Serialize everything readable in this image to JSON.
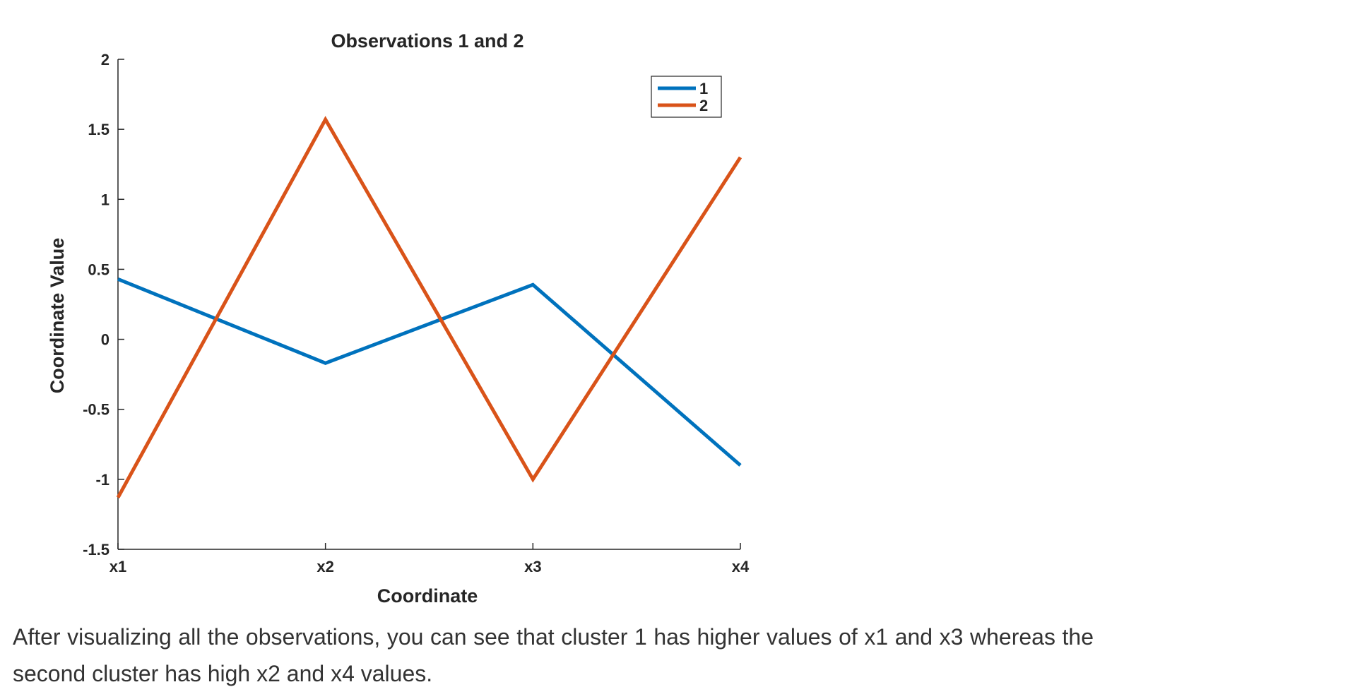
{
  "chart_data": {
    "type": "line",
    "title": "Observations 1 and 2",
    "xlabel": "Coordinate",
    "ylabel": "Coordinate Value",
    "categories": [
      "x1",
      "x2",
      "x3",
      "x4"
    ],
    "ylim": [
      -1.5,
      2
    ],
    "yticks": [
      -1.5,
      -1,
      -0.5,
      0,
      0.5,
      1,
      1.5,
      2
    ],
    "ytick_labels": [
      "-1.5",
      "-1",
      "-0.5",
      "0",
      "0.5",
      "1",
      "1.5",
      "2"
    ],
    "grid": false,
    "legend_position": "top-right",
    "series": [
      {
        "name": "1",
        "color": "#0072BD",
        "values": [
          0.43,
          -0.17,
          0.39,
          -0.9
        ]
      },
      {
        "name": "2",
        "color": "#D95319",
        "values": [
          -1.13,
          1.57,
          -1.0,
          1.3
        ]
      }
    ]
  },
  "caption": "After visualizing all the observations, you can see that cluster 1 has higher values of x1 and x3 whereas the second cluster has high x2 and x4 values."
}
